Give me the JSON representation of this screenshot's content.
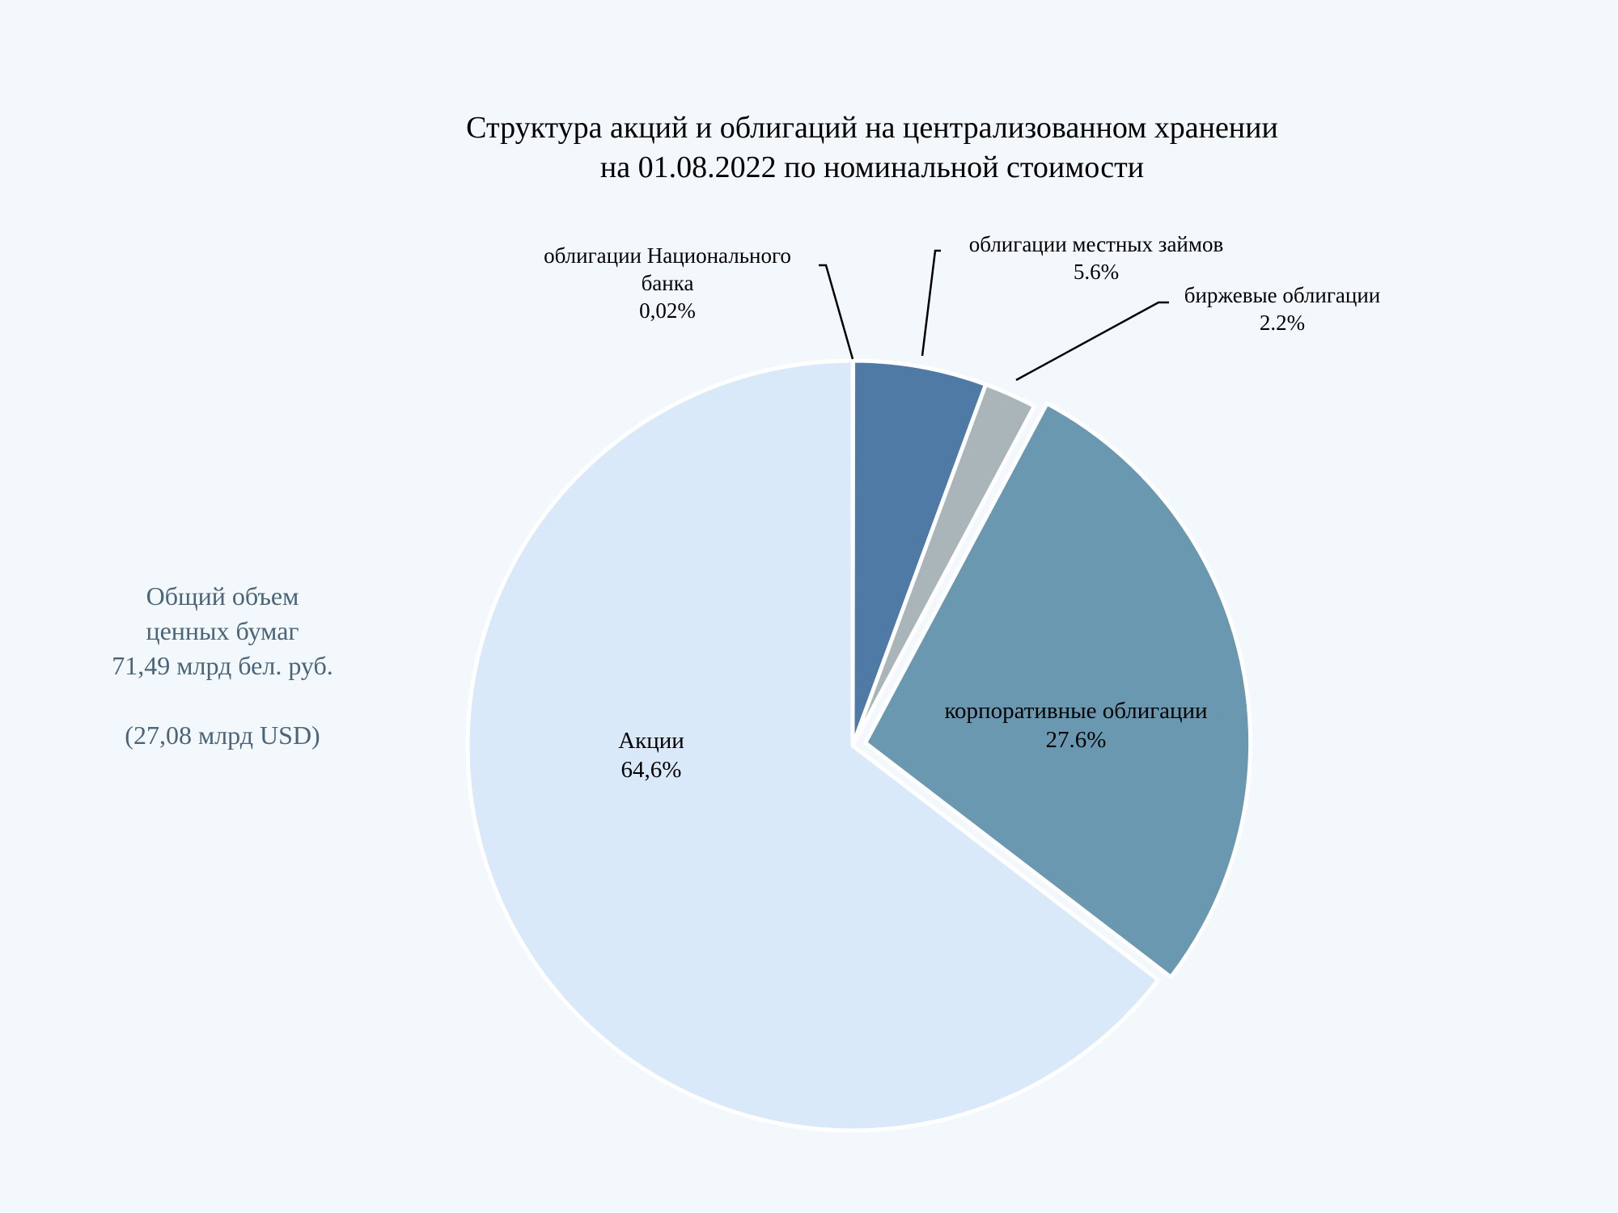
{
  "chart_data": {
    "type": "pie",
    "title": [
      "Структура акций и облигаций  на централизованном хранении",
      "на 01.08.2022 по номинальной стоимости"
    ],
    "slices": [
      {
        "name": [
          "облигации Национального",
          "банка"
        ],
        "value": 0.02,
        "label": "0,02%",
        "color": "#3f6a97",
        "exploded": false
      },
      {
        "name": [
          "облигации местных займов"
        ],
        "value": 5.6,
        "label": "5.6%",
        "color": "#4f7aa5",
        "exploded": false
      },
      {
        "name": [
          "биржевые облигации"
        ],
        "value": 2.2,
        "label": "2.2%",
        "color": "#a9b5b8",
        "exploded": false
      },
      {
        "name": [
          "корпоративные облигации"
        ],
        "value": 27.6,
        "label": "27.6%",
        "color": "#6a98b0",
        "exploded": true
      },
      {
        "name": [
          "Акции"
        ],
        "value": 64.6,
        "label": "64,6%",
        "color": "#d9e9fa",
        "exploded": false
      }
    ]
  },
  "side_note": {
    "lines": [
      "Общий объем",
      "ценных бумаг",
      "71,49  млрд бел. руб.",
      "",
      "(27,08  млрд USD)"
    ]
  },
  "colors": {
    "background": "#f3f8fd",
    "separator": "#ffffff",
    "leader": "#000000"
  }
}
